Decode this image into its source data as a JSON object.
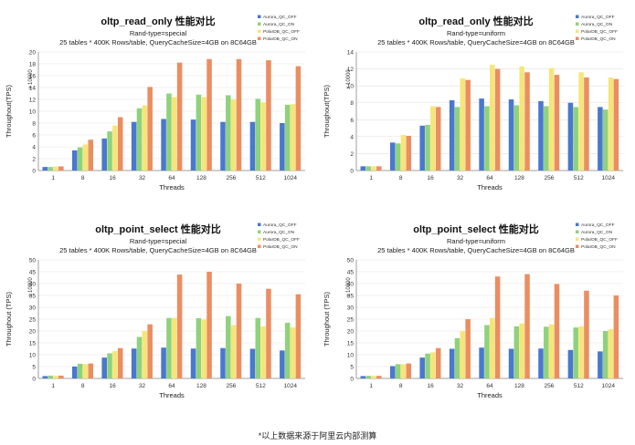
{
  "footnote": "*以上数据来源于阿里云内部测算",
  "colors": {
    "Aurora_QC_OFF": "#4a78cf",
    "Aurora_QC_ON": "#8fd27c",
    "PolarDB_QC_OFF": "#f6e67a",
    "PolarDB_QC_ON": "#ea8e62",
    "grid": "#e2e2e2"
  },
  "chart_data": [
    {
      "type": "bar",
      "title": "oltp_read_only 性能对比",
      "subtitle1": "Rand-type=special",
      "subtitle2": "25 tables * 400K Rows/table, QueryCacheSize=4GB on 8C64GB",
      "xlabel": "Threads",
      "ylabel": "Throughout(TPS)",
      "yunit": "x 10000",
      "categories": [
        "1",
        "8",
        "16",
        "32",
        "64",
        "128",
        "256",
        "512",
        "1024"
      ],
      "ylim": [
        0,
        20
      ],
      "yticks": [
        0,
        2,
        4,
        6,
        8,
        10,
        12,
        14,
        16,
        18,
        20
      ],
      "series": [
        {
          "name": "Aurora_QC_OFF",
          "values": [
            0.6,
            3.4,
            5.4,
            8.2,
            8.7,
            8.6,
            8.2,
            8.2,
            8.0
          ]
        },
        {
          "name": "Aurora_QC_ON",
          "values": [
            0.6,
            3.9,
            6.6,
            10.5,
            13.0,
            12.8,
            12.7,
            12.1,
            11.1
          ]
        },
        {
          "name": "PolarDB_QC_OFF",
          "values": [
            0.7,
            4.4,
            7.6,
            11.0,
            12.4,
            12.4,
            12.0,
            11.5,
            11.2
          ]
        },
        {
          "name": "PolarDB_QC_ON",
          "values": [
            0.7,
            5.2,
            9.0,
            14.1,
            18.2,
            18.8,
            18.8,
            18.6,
            17.6
          ]
        }
      ]
    },
    {
      "type": "bar",
      "title": "oltp_read_only 性能对比",
      "subtitle1": "Rand-type=uniform",
      "subtitle2": "25 tables * 400K Rows/table, QueryCacheSize=4GB on 8C64GB",
      "xlabel": "Threads",
      "ylabel": "Throughout(TPS)",
      "yunit": "x 10000",
      "categories": [
        "1",
        "8",
        "16",
        "32",
        "64",
        "128",
        "256",
        "512",
        "1024"
      ],
      "ylim": [
        0,
        14
      ],
      "yticks": [
        0,
        2,
        4,
        6,
        8,
        10,
        12,
        14
      ],
      "series": [
        {
          "name": "Aurora_QC_OFF",
          "values": [
            0.5,
            3.3,
            5.3,
            8.3,
            8.5,
            8.4,
            8.2,
            8.0,
            7.5
          ]
        },
        {
          "name": "Aurora_QC_ON",
          "values": [
            0.5,
            3.2,
            5.4,
            7.5,
            7.6,
            7.7,
            7.6,
            7.5,
            7.2
          ]
        },
        {
          "name": "PolarDB_QC_OFF",
          "values": [
            0.5,
            4.2,
            7.6,
            10.9,
            12.5,
            12.3,
            12.1,
            11.6,
            11.0
          ]
        },
        {
          "name": "PolarDB_QC_ON",
          "values": [
            0.5,
            4.1,
            7.5,
            10.7,
            12.0,
            11.6,
            11.3,
            11.0,
            10.8
          ]
        }
      ]
    },
    {
      "type": "bar",
      "title": "oltp_point_select 性能对比",
      "subtitle1": "Rand-type=special",
      "subtitle2": "25 tables * 400K Rows/table, QueryCacheSize=4GB on 8C64GB",
      "xlabel": "Threads",
      "ylabel": "Throughout (TPS)",
      "yunit": "x 10000",
      "categories": [
        "1",
        "8",
        "16",
        "32",
        "64",
        "128",
        "256",
        "512",
        "1024"
      ],
      "ylim": [
        0,
        50
      ],
      "yticks": [
        0,
        5,
        10,
        15,
        20,
        25,
        30,
        35,
        40,
        45,
        50
      ],
      "series": [
        {
          "name": "Aurora_QC_OFF",
          "values": [
            1.0,
            5.0,
            8.8,
            12.6,
            13.0,
            12.6,
            12.8,
            12.5,
            11.8
          ]
        },
        {
          "name": "Aurora_QC_ON",
          "values": [
            1.2,
            6.2,
            10.6,
            17.5,
            25.5,
            25.4,
            26.3,
            25.5,
            23.5
          ]
        },
        {
          "name": "PolarDB_QC_OFF",
          "values": [
            1.1,
            6.0,
            11.5,
            20.0,
            25.5,
            24.8,
            22.5,
            22.0,
            21.5
          ]
        },
        {
          "name": "PolarDB_QC_ON",
          "values": [
            1.2,
            6.3,
            12.8,
            22.8,
            43.8,
            45.0,
            40.0,
            37.8,
            35.5
          ]
        }
      ]
    },
    {
      "type": "bar",
      "title": "oltp_point_select 性能对比",
      "subtitle1": "Rand-type=uniform",
      "subtitle2": "25 tables * 400K Rows/table, QueryCacheSize=4GB on 8C64GB",
      "xlabel": "Threads",
      "ylabel": "Throughout (TPS)",
      "yunit": "x 10000",
      "categories": [
        "1",
        "8",
        "16",
        "32",
        "64",
        "128",
        "256",
        "512",
        "1024"
      ],
      "ylim": [
        0,
        50
      ],
      "yticks": [
        0,
        5,
        10,
        15,
        20,
        25,
        30,
        35,
        40,
        45,
        50
      ],
      "series": [
        {
          "name": "Aurora_QC_OFF",
          "values": [
            1.0,
            5.2,
            8.8,
            12.5,
            13.0,
            12.5,
            12.6,
            12.0,
            11.4
          ]
        },
        {
          "name": "Aurora_QC_ON",
          "values": [
            1.1,
            6.0,
            10.5,
            17.0,
            22.5,
            22.0,
            21.8,
            21.5,
            20.0
          ]
        },
        {
          "name": "PolarDB_QC_OFF",
          "values": [
            1.1,
            6.0,
            11.0,
            20.0,
            25.5,
            23.2,
            22.8,
            22.0,
            20.8
          ]
        },
        {
          "name": "PolarDB_QC_ON",
          "values": [
            1.1,
            6.3,
            12.8,
            25.0,
            43.0,
            44.0,
            39.8,
            37.0,
            35.0
          ]
        }
      ]
    }
  ]
}
